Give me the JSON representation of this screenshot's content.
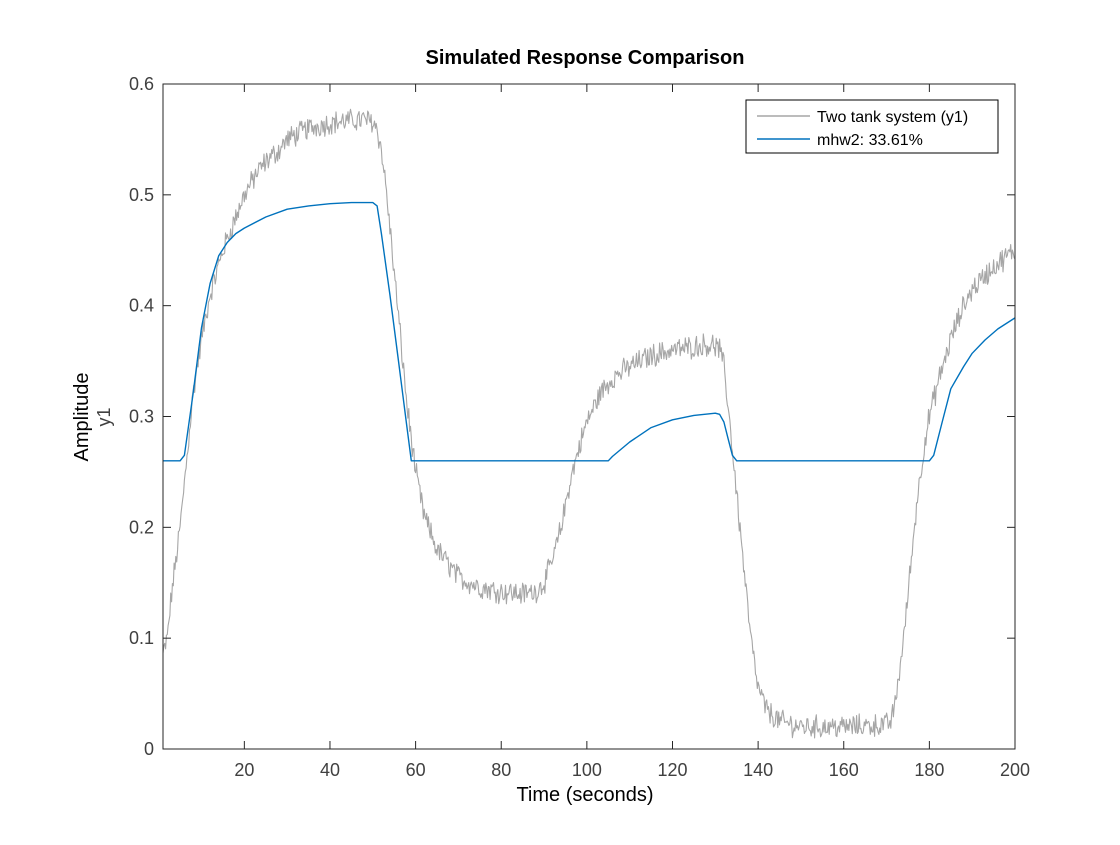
{
  "chart_data": {
    "type": "line",
    "title": "Simulated Response Comparison",
    "xlabel": "Time (seconds)",
    "ylabel": "Amplitude",
    "ylabel_channel": "y1",
    "xlim": [
      1,
      200
    ],
    "ylim": [
      0,
      0.6
    ],
    "x_ticks": [
      20,
      40,
      60,
      80,
      100,
      120,
      140,
      160,
      180,
      200
    ],
    "y_ticks": [
      0,
      0.1,
      0.2,
      0.3,
      0.4,
      0.5,
      0.6
    ],
    "grid": false,
    "legend_position": "top-right",
    "series": [
      {
        "name": "Two tank system (y1)",
        "color": "#a6a6a6",
        "noisy": true,
        "x": [
          1,
          2,
          3,
          4,
          5,
          6,
          7,
          8,
          10,
          12,
          15,
          18,
          20,
          23,
          25,
          28,
          30,
          35,
          40,
          45,
          48,
          50,
          51,
          52,
          53,
          54,
          55,
          56,
          57,
          58,
          59,
          60,
          62,
          65,
          70,
          75,
          80,
          85,
          88,
          90,
          92,
          94,
          96,
          98,
          100,
          103,
          106,
          110,
          115,
          120,
          125,
          128,
          130,
          131,
          132,
          133,
          134,
          135,
          136,
          137,
          138,
          139,
          140,
          142,
          145,
          150,
          155,
          160,
          165,
          170,
          171,
          172,
          173,
          174,
          175,
          176,
          177,
          178,
          179,
          180,
          182,
          185,
          188,
          190,
          195,
          200
        ],
        "y": [
          0.085,
          0.1,
          0.14,
          0.17,
          0.2,
          0.24,
          0.28,
          0.32,
          0.37,
          0.41,
          0.45,
          0.48,
          0.5,
          0.52,
          0.53,
          0.54,
          0.55,
          0.56,
          0.565,
          0.567,
          0.568,
          0.566,
          0.56,
          0.54,
          0.51,
          0.47,
          0.43,
          0.39,
          0.35,
          0.31,
          0.28,
          0.25,
          0.21,
          0.18,
          0.155,
          0.146,
          0.142,
          0.14,
          0.142,
          0.15,
          0.17,
          0.2,
          0.24,
          0.27,
          0.295,
          0.32,
          0.335,
          0.345,
          0.355,
          0.36,
          0.363,
          0.365,
          0.364,
          0.36,
          0.345,
          0.31,
          0.27,
          0.23,
          0.19,
          0.15,
          0.11,
          0.08,
          0.055,
          0.035,
          0.025,
          0.02,
          0.02,
          0.02,
          0.021,
          0.022,
          0.025,
          0.04,
          0.07,
          0.1,
          0.14,
          0.18,
          0.22,
          0.25,
          0.28,
          0.3,
          0.33,
          0.37,
          0.4,
          0.415,
          0.435,
          0.45
        ]
      },
      {
        "name": "mhw2: 33.61%",
        "color": "#0072bd",
        "noisy": false,
        "x": [
          1,
          5,
          6,
          8,
          10,
          12,
          14,
          16,
          18,
          20,
          25,
          30,
          35,
          40,
          45,
          50,
          51,
          52,
          54,
          56,
          58,
          59,
          100,
          105,
          106,
          110,
          115,
          120,
          125,
          130,
          131,
          132,
          133,
          134,
          135,
          180,
          181,
          183,
          185,
          188,
          190,
          193,
          196,
          200
        ],
        "y": [
          0.26,
          0.26,
          0.265,
          0.32,
          0.38,
          0.42,
          0.445,
          0.457,
          0.465,
          0.47,
          0.48,
          0.487,
          0.49,
          0.492,
          0.493,
          0.493,
          0.49,
          0.465,
          0.41,
          0.35,
          0.29,
          0.26,
          0.26,
          0.26,
          0.264,
          0.277,
          0.29,
          0.297,
          0.301,
          0.303,
          0.302,
          0.295,
          0.28,
          0.265,
          0.26,
          0.26,
          0.265,
          0.295,
          0.325,
          0.345,
          0.357,
          0.369,
          0.379,
          0.389
        ]
      }
    ]
  }
}
